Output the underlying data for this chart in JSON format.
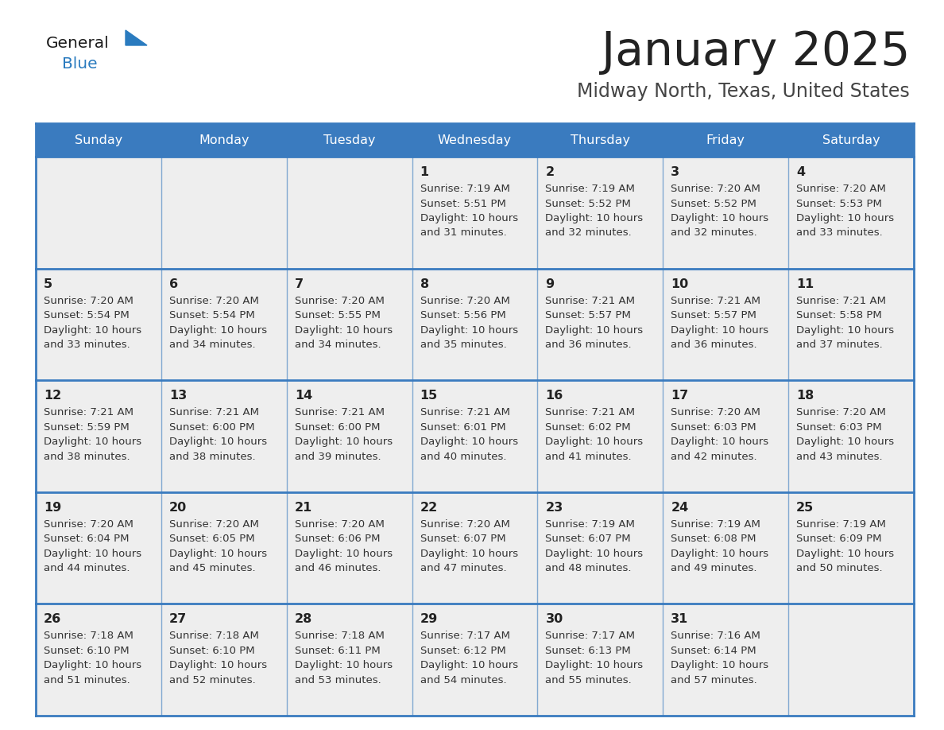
{
  "title": "January 2025",
  "subtitle": "Midway North, Texas, United States",
  "days_of_week": [
    "Sunday",
    "Monday",
    "Tuesday",
    "Wednesday",
    "Thursday",
    "Friday",
    "Saturday"
  ],
  "header_bg": "#3a7bbf",
  "header_text": "#ffffff",
  "cell_bg": "#eeeeee",
  "cell_bg_alt": "#f5f5f5",
  "border_color": "#3a7bbf",
  "title_color": "#222222",
  "subtitle_color": "#444444",
  "day_number_color": "#222222",
  "cell_text_color": "#333333",
  "logo_general_color": "#1a1a1a",
  "logo_blue_color": "#2a7bbf",
  "calendar_data": [
    [
      null,
      null,
      null,
      {
        "day": 1,
        "sunrise": "7:19 AM",
        "sunset": "5:51 PM",
        "daylight": "10 hours and 31 minutes."
      },
      {
        "day": 2,
        "sunrise": "7:19 AM",
        "sunset": "5:52 PM",
        "daylight": "10 hours and 32 minutes."
      },
      {
        "day": 3,
        "sunrise": "7:20 AM",
        "sunset": "5:52 PM",
        "daylight": "10 hours and 32 minutes."
      },
      {
        "day": 4,
        "sunrise": "7:20 AM",
        "sunset": "5:53 PM",
        "daylight": "10 hours and 33 minutes."
      }
    ],
    [
      {
        "day": 5,
        "sunrise": "7:20 AM",
        "sunset": "5:54 PM",
        "daylight": "10 hours and 33 minutes."
      },
      {
        "day": 6,
        "sunrise": "7:20 AM",
        "sunset": "5:54 PM",
        "daylight": "10 hours and 34 minutes."
      },
      {
        "day": 7,
        "sunrise": "7:20 AM",
        "sunset": "5:55 PM",
        "daylight": "10 hours and 34 minutes."
      },
      {
        "day": 8,
        "sunrise": "7:20 AM",
        "sunset": "5:56 PM",
        "daylight": "10 hours and 35 minutes."
      },
      {
        "day": 9,
        "sunrise": "7:21 AM",
        "sunset": "5:57 PM",
        "daylight": "10 hours and 36 minutes."
      },
      {
        "day": 10,
        "sunrise": "7:21 AM",
        "sunset": "5:57 PM",
        "daylight": "10 hours and 36 minutes."
      },
      {
        "day": 11,
        "sunrise": "7:21 AM",
        "sunset": "5:58 PM",
        "daylight": "10 hours and 37 minutes."
      }
    ],
    [
      {
        "day": 12,
        "sunrise": "7:21 AM",
        "sunset": "5:59 PM",
        "daylight": "10 hours and 38 minutes."
      },
      {
        "day": 13,
        "sunrise": "7:21 AM",
        "sunset": "6:00 PM",
        "daylight": "10 hours and 38 minutes."
      },
      {
        "day": 14,
        "sunrise": "7:21 AM",
        "sunset": "6:00 PM",
        "daylight": "10 hours and 39 minutes."
      },
      {
        "day": 15,
        "sunrise": "7:21 AM",
        "sunset": "6:01 PM",
        "daylight": "10 hours and 40 minutes."
      },
      {
        "day": 16,
        "sunrise": "7:21 AM",
        "sunset": "6:02 PM",
        "daylight": "10 hours and 41 minutes."
      },
      {
        "day": 17,
        "sunrise": "7:20 AM",
        "sunset": "6:03 PM",
        "daylight": "10 hours and 42 minutes."
      },
      {
        "day": 18,
        "sunrise": "7:20 AM",
        "sunset": "6:03 PM",
        "daylight": "10 hours and 43 minutes."
      }
    ],
    [
      {
        "day": 19,
        "sunrise": "7:20 AM",
        "sunset": "6:04 PM",
        "daylight": "10 hours and 44 minutes."
      },
      {
        "day": 20,
        "sunrise": "7:20 AM",
        "sunset": "6:05 PM",
        "daylight": "10 hours and 45 minutes."
      },
      {
        "day": 21,
        "sunrise": "7:20 AM",
        "sunset": "6:06 PM",
        "daylight": "10 hours and 46 minutes."
      },
      {
        "day": 22,
        "sunrise": "7:20 AM",
        "sunset": "6:07 PM",
        "daylight": "10 hours and 47 minutes."
      },
      {
        "day": 23,
        "sunrise": "7:19 AM",
        "sunset": "6:07 PM",
        "daylight": "10 hours and 48 minutes."
      },
      {
        "day": 24,
        "sunrise": "7:19 AM",
        "sunset": "6:08 PM",
        "daylight": "10 hours and 49 minutes."
      },
      {
        "day": 25,
        "sunrise": "7:19 AM",
        "sunset": "6:09 PM",
        "daylight": "10 hours and 50 minutes."
      }
    ],
    [
      {
        "day": 26,
        "sunrise": "7:18 AM",
        "sunset": "6:10 PM",
        "daylight": "10 hours and 51 minutes."
      },
      {
        "day": 27,
        "sunrise": "7:18 AM",
        "sunset": "6:10 PM",
        "daylight": "10 hours and 52 minutes."
      },
      {
        "day": 28,
        "sunrise": "7:18 AM",
        "sunset": "6:11 PM",
        "daylight": "10 hours and 53 minutes."
      },
      {
        "day": 29,
        "sunrise": "7:17 AM",
        "sunset": "6:12 PM",
        "daylight": "10 hours and 54 minutes."
      },
      {
        "day": 30,
        "sunrise": "7:17 AM",
        "sunset": "6:13 PM",
        "daylight": "10 hours and 55 minutes."
      },
      {
        "day": 31,
        "sunrise": "7:16 AM",
        "sunset": "6:14 PM",
        "daylight": "10 hours and 57 minutes."
      },
      null
    ]
  ]
}
